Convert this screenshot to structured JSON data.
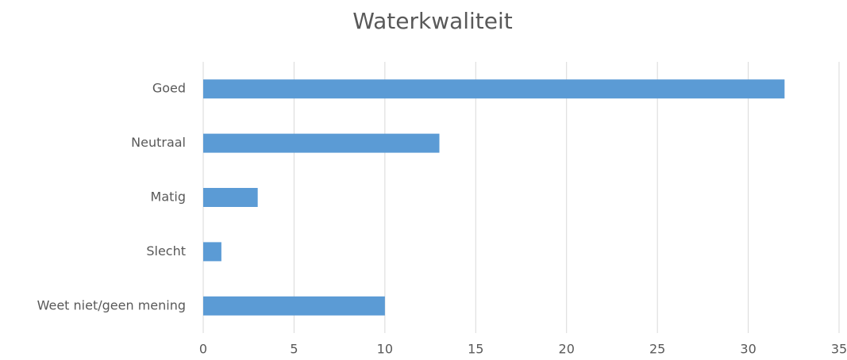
{
  "chart_data": {
    "type": "bar",
    "orientation": "horizontal",
    "title": "Waterkwaliteit",
    "categories": [
      "Goed",
      "Neutraal",
      "Matig",
      "Slecht",
      "Weet niet/geen mening"
    ],
    "values": [
      32,
      13,
      3,
      1,
      10
    ],
    "color": "#5b9bd5",
    "xlim": [
      0,
      35
    ],
    "xticks": [
      0,
      5,
      10,
      15,
      20,
      25,
      30,
      35
    ],
    "grid": true
  }
}
